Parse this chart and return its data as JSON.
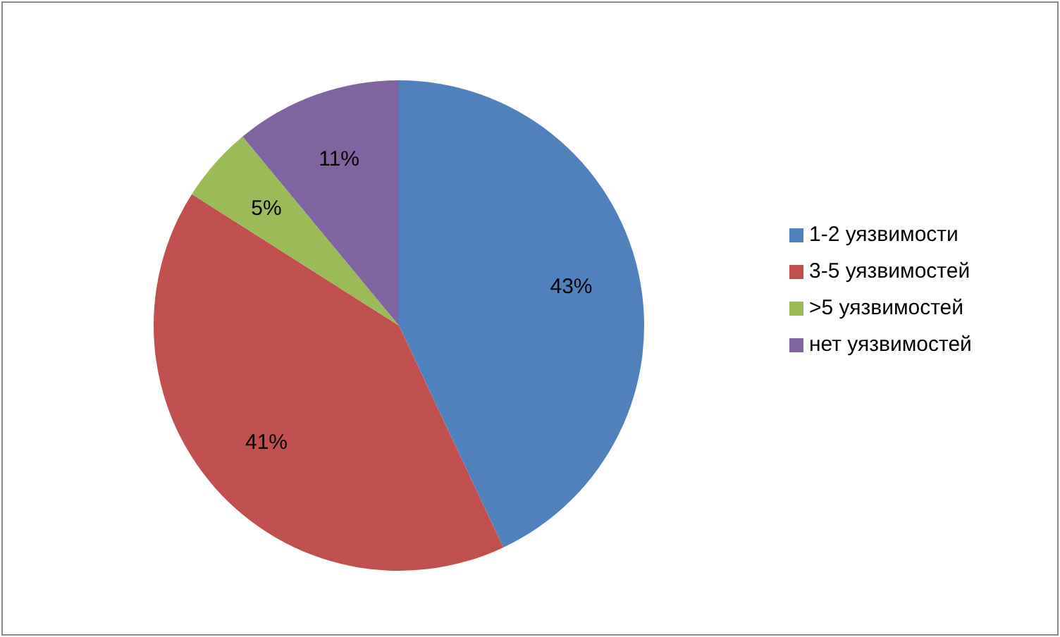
{
  "chart_data": {
    "type": "pie",
    "categories": [
      "1-2 уязвимости",
      "3-5 уязвимостей",
      ">5 уязвимостей",
      "нет уязвимостей"
    ],
    "values": [
      43,
      41,
      5,
      11
    ],
    "colors": [
      "#4f81bd",
      "#c0504d",
      "#9bbb59",
      "#8064a2"
    ],
    "value_labels": [
      "43%",
      "41%",
      "5%",
      "11%"
    ],
    "legend": "right"
  }
}
